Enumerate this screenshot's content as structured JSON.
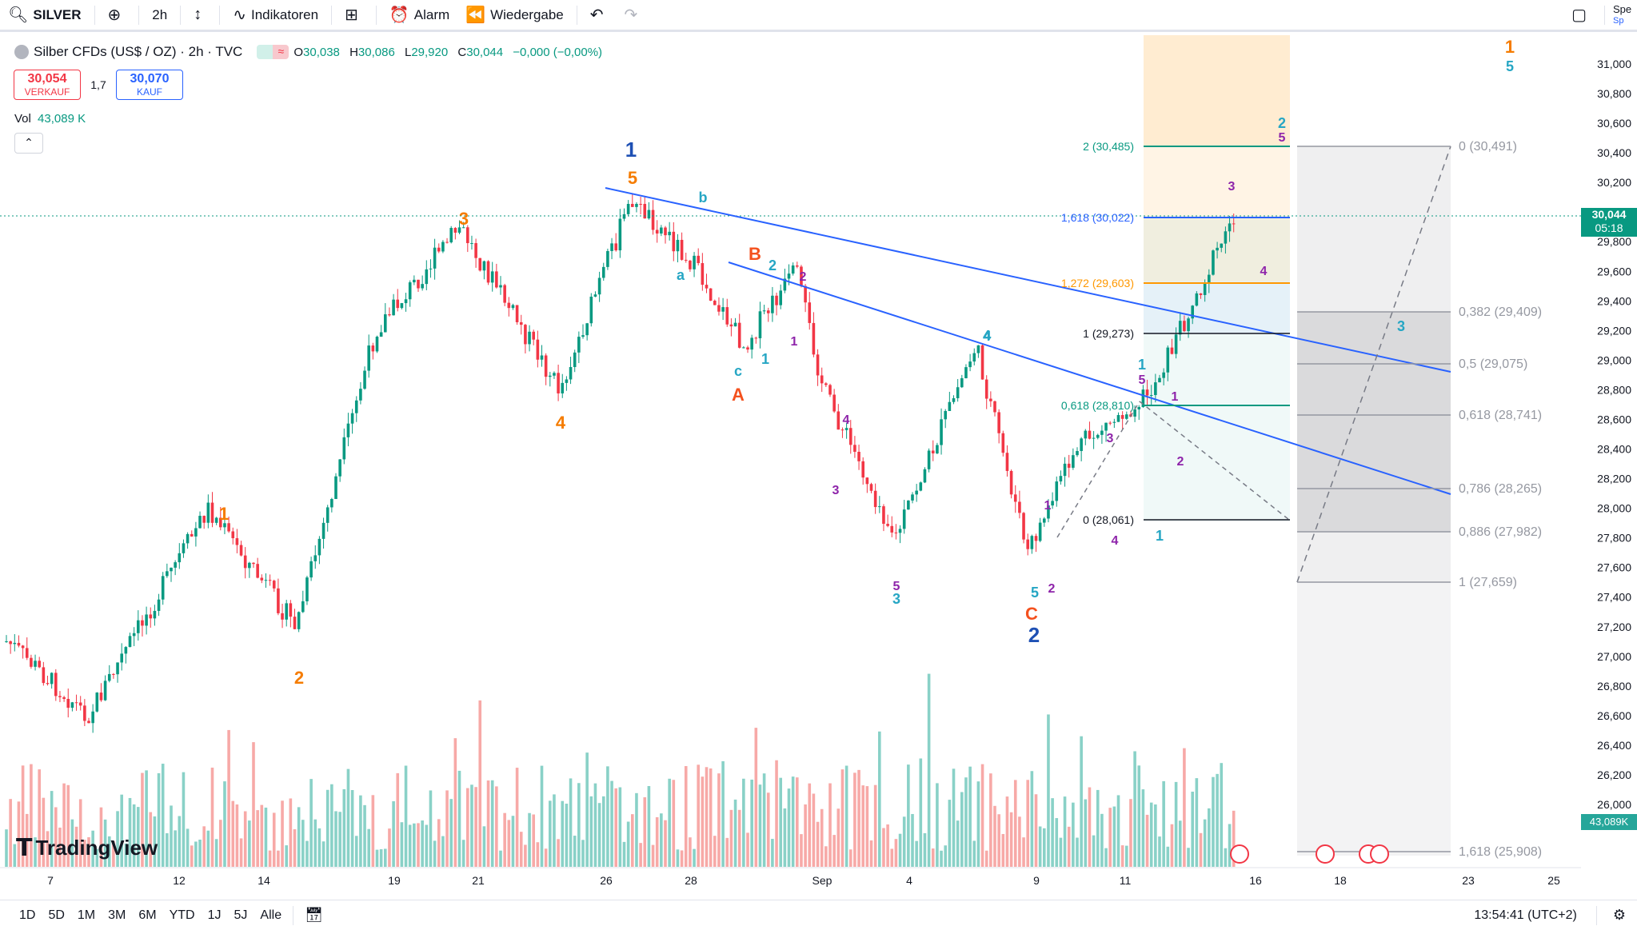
{
  "toolbar": {
    "symbol": "SILVER",
    "interval": "2h",
    "indicators_label": "Indikatoren",
    "alert_label": "Alarm",
    "replay_label": "Wiedergabe",
    "right_label_top": "Spe",
    "right_label_bottom": "Sp"
  },
  "legend": {
    "title": "Silber CFDs (US$ / OZ) · 2h · TVC",
    "open_label": "O",
    "open": "30,038",
    "high_label": "H",
    "high": "30,086",
    "low_label": "L",
    "low": "29,920",
    "close_label": "C",
    "close": "30,044",
    "change": "−0,000 (−0,00%)"
  },
  "trade": {
    "sell_price": "30,054",
    "sell_label": "VERKAUF",
    "spread": "1,7",
    "buy_price": "30,070",
    "buy_label": "KAUF"
  },
  "volume": {
    "label": "Vol",
    "value": "43,089 K"
  },
  "price_axis": {
    "ticks": [
      "31,000",
      "30,800",
      "30,600",
      "30,400",
      "30,200",
      "30,000",
      "29,800",
      "29,600",
      "29,400",
      "29,200",
      "29,000",
      "28,800",
      "28,600",
      "28,400",
      "28,200",
      "28,000",
      "27,800",
      "27,600",
      "27,400",
      "27,200",
      "27,000",
      "26,800",
      "26,600",
      "26,400",
      "26,200",
      "26,000"
    ],
    "current_price": "30,044",
    "countdown": "05:18",
    "volume_label": "43,089K"
  },
  "time_axis": [
    "7",
    "12",
    "14",
    "19",
    "21",
    "26",
    "28",
    "Sep",
    "4",
    "9",
    "11",
    "16",
    "18",
    "25",
    "23"
  ],
  "fib_left": [
    "2 (30,485)",
    "1,618 (30,022)",
    "1,272 (29,603)",
    "1 (29,273)",
    "0,618 (28,810)",
    "0 (28,061)"
  ],
  "fib_right": [
    "0 (30,491)",
    "0,382 (29,409)",
    "0,5 (29,075)",
    "0,618 (28,741)",
    "0,786 (28,265)",
    "0,886 (27,982)",
    "1 (27,659)",
    "1,618 (25,908)"
  ],
  "wave_labels": [
    "1",
    "5",
    "3",
    "4",
    "1",
    "2",
    "b",
    "a",
    "c",
    "B",
    "2",
    "2",
    "A",
    "1",
    "1",
    "4",
    "3",
    "4",
    "5",
    "3",
    "C",
    "2",
    "1",
    "5",
    "1",
    "2",
    "3",
    "4",
    "1",
    "5",
    "2",
    "1",
    "2",
    "3",
    "5",
    "3",
    "4",
    "4",
    "5",
    "1"
  ],
  "timeframes": [
    "1D",
    "5D",
    "1M",
    "3M",
    "6M",
    "YTD",
    "1J",
    "5J",
    "Alle"
  ],
  "clock": "13:54:41 (UTC+2)",
  "brand": "TradingView",
  "colors": {
    "up": "#089981",
    "down": "#f23645",
    "trendline": "#2962ff",
    "fib_green": "#089981",
    "fib_orange": "#ff9800",
    "fib_gray": "#787b86"
  },
  "chart_data": {
    "type": "candlestick",
    "symbol": "Silber CFDs (US$ / OZ)",
    "interval": "2h",
    "ylim": [
      25.8,
      31.2
    ],
    "last_close": 30.044,
    "waypoints": [
      [
        "Aug 7",
        27.1
      ],
      [
        "Aug 8",
        26.6
      ],
      [
        "Aug 12",
        28.0
      ],
      [
        "Aug 14",
        27.2
      ],
      [
        "Aug 19",
        29.2
      ],
      [
        "Aug 20",
        29.9
      ],
      [
        "Aug 23",
        28.8
      ],
      [
        "Aug 26",
        30.1
      ],
      [
        "Aug 28",
        29.7
      ],
      [
        "Aug 29",
        29.1
      ],
      [
        "Aug 30",
        29.6
      ],
      [
        "Sep 2",
        28.8
      ],
      [
        "Sep 3",
        27.8
      ],
      [
        "Sep 6",
        29.1
      ],
      [
        "Sep 8",
        27.7
      ],
      [
        "Sep 10",
        28.4
      ],
      [
        "Sep 12",
        28.8
      ],
      [
        "Sep 13",
        30.0
      ]
    ]
  }
}
